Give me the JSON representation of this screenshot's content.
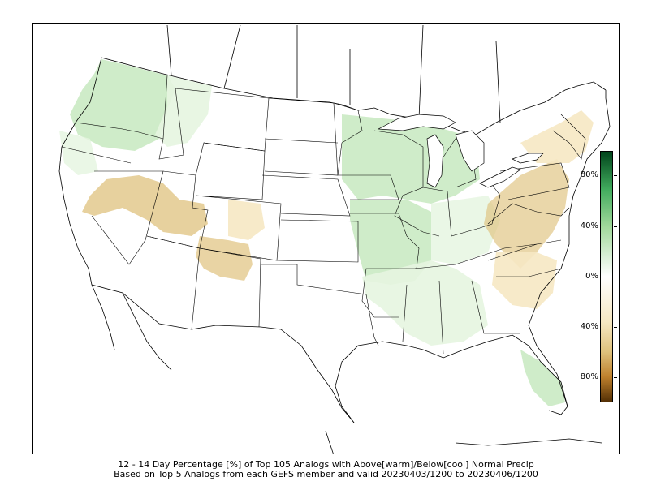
{
  "caption": {
    "line1": "12 - 14 Day Percentage [%] of Top 105 Analogs with Above[warm]/Below[cool] Normal Precip",
    "line2": "Based on Top 5 Analogs from each GEFS member and valid 20230403/1200 to 20230406/1200"
  },
  "colorbar": {
    "labels": [
      "80%",
      "40%",
      "0%",
      "40%",
      "80%"
    ],
    "above_color": "#00441b",
    "mid_color": "#ffffff",
    "below_color": "#543005"
  },
  "colors": {
    "green_light": "#e5f5e0",
    "green_mid": "#c7e9c0",
    "green_strong": "#a1d99b",
    "brown_light": "#f6e8c3",
    "brown_mid": "#dfc27d"
  }
}
